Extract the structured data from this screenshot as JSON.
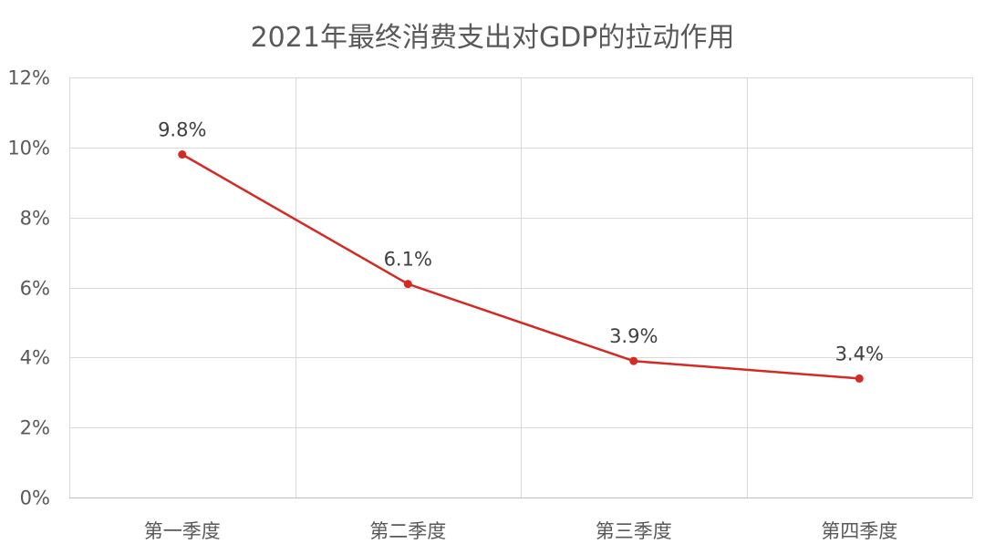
{
  "chart_data": {
    "type": "line",
    "title": "2021年最终消费支出对GDP的拉动作用",
    "xlabel": "",
    "ylabel": "",
    "categories": [
      "第一季度",
      "第二季度",
      "第三季度",
      "第四季度"
    ],
    "series": [
      {
        "values": [
          9.8,
          6.1,
          3.9,
          3.4
        ],
        "data_labels": [
          "9.8%",
          "6.1%",
          "3.9%",
          "3.4%"
        ],
        "color": "#d42a24"
      }
    ],
    "ylim": [
      0,
      12
    ],
    "y_ticks": [
      0,
      2,
      4,
      6,
      8,
      10,
      12
    ],
    "y_tick_labels": [
      "0%",
      "2%",
      "4%",
      "6%",
      "8%",
      "10%",
      "12%"
    ],
    "grid": true,
    "gridline_color": "#d9d9d9",
    "legend": "none"
  }
}
